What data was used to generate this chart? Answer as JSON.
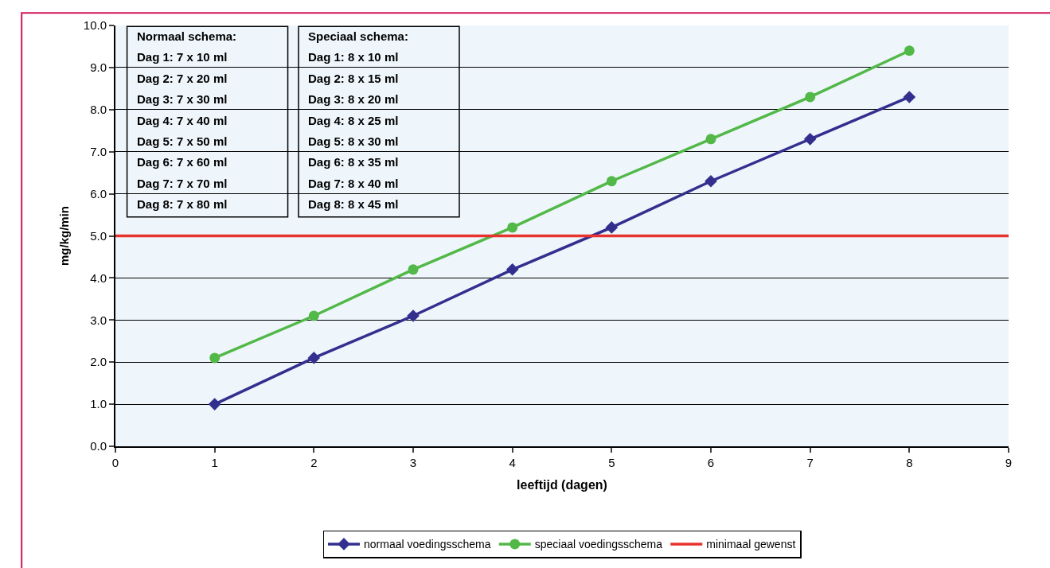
{
  "chart_data": {
    "type": "line",
    "xlabel": "leeftijd (dagen)",
    "ylabel": "mg/kg/min",
    "x": [
      1,
      2,
      3,
      4,
      5,
      6,
      7,
      8
    ],
    "series": [
      {
        "name": "normaal voedingsschema",
        "color": "#332f8f",
        "marker": "diamond",
        "values": [
          1.0,
          2.1,
          3.1,
          4.2,
          5.2,
          6.3,
          7.3,
          8.3
        ]
      },
      {
        "name": "speciaal voedingsschema",
        "color": "#52b848",
        "marker": "circle",
        "values": [
          2.1,
          3.1,
          4.2,
          5.2,
          6.3,
          7.3,
          8.3,
          9.4
        ]
      }
    ],
    "ref_lines": [
      {
        "axis": "y",
        "value": 5.0,
        "label": "minimaal gewenst",
        "color": "#e8322d",
        "line_style": "solid"
      }
    ],
    "annotations": [
      "Normaal schema:\nDag 1: 7 x 10 ml\nDag 2: 7 x 20 ml\nDag 3: 7 x 30 ml\nDag 4: 7 x 40 ml\nDag 5: 7 x 50 ml\nDag 6: 7 x 60 ml\nDag 7: 7 x 70 ml\nDag 8: 7 x 80 ml",
      "Speciaal schema:\nDag 1: 8 x 10 ml\nDag 2: 8 x 15 ml\nDag 3: 8 x 20 ml\nDag 4: 8 x 25 ml\nDag 5: 8 x 30 ml\nDag 6: 8 x 35 ml\nDag 7: 8 x 40 ml\nDag 8: 8 x 45 ml"
    ],
    "xlim": [
      0,
      9
    ],
    "xticks": [
      0,
      1,
      2,
      3,
      4,
      5,
      6,
      7,
      8,
      9
    ],
    "ylim": [
      0,
      10
    ],
    "yticks": [
      {
        "value": 0,
        "label": "0.0"
      },
      {
        "value": 1,
        "label": "1.0"
      },
      {
        "value": 2,
        "label": "2.0"
      },
      {
        "value": 3,
        "label": "3.0"
      },
      {
        "value": 4,
        "label": "4.0"
      },
      {
        "value": 5,
        "label": "5.0"
      },
      {
        "value": 6,
        "label": "6.0"
      },
      {
        "value": 7,
        "label": "7.0"
      },
      {
        "value": 8,
        "label": "8.0"
      },
      {
        "value": 9,
        "label": "9.0"
      },
      {
        "value": 10,
        "label": "10.0"
      }
    ],
    "grid": "y",
    "legend": "bottom",
    "line_style": "solid"
  }
}
